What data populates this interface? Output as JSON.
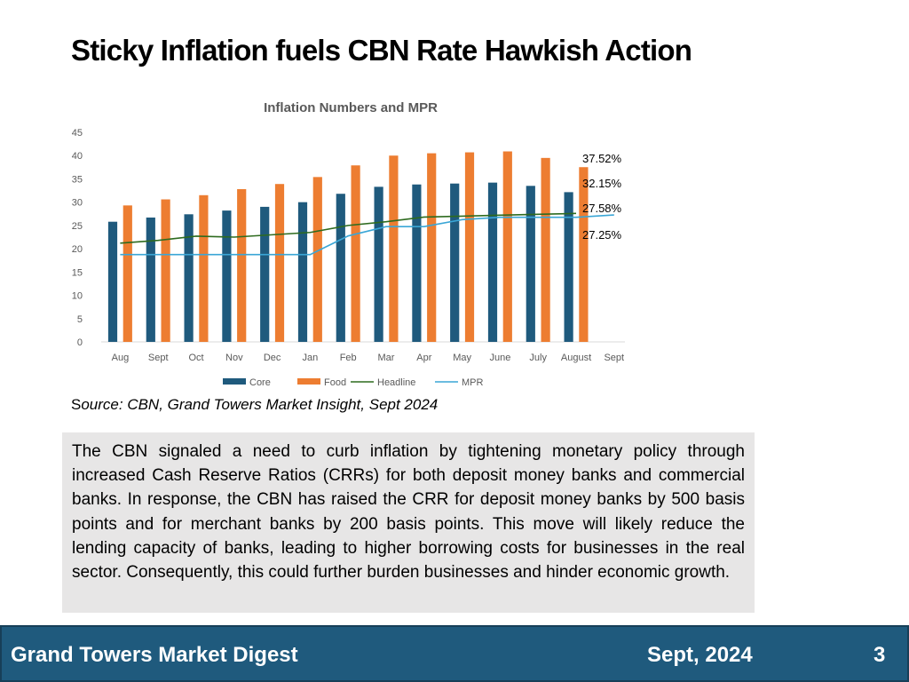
{
  "slide": {
    "title": "Sticky Inflation fuels CBN Rate Hawkish Action",
    "source_first": "S",
    "source_rest": "ource: CBN, Grand Towers Market Insight, Sept 2024",
    "body": "The CBN signaled a need to curb inflation by tightening monetary policy through increased Cash Reserve Ratios (CRRs) for both deposit money banks and commercial banks. In response, the CBN has raised the CRR for deposit money banks by 500 basis points and for merchant banks by 200 basis points. This move will likely reduce the lending capacity of banks, leading to higher borrowing costs for businesses in the real sector. Consequently, this could further burden businesses and hinder economic growth."
  },
  "footer": {
    "left": "Grand Towers Market Digest",
    "date": "Sept, 2024",
    "page": "3"
  },
  "chart_data": {
    "type": "bar",
    "title": "Inflation Numbers and MPR",
    "categories": [
      "Aug",
      "Sept",
      "Oct",
      "Nov",
      "Dec",
      "Jan",
      "Feb",
      "Mar",
      "Apr",
      "May",
      "June",
      "July",
      "August",
      "Sept"
    ],
    "ylim": [
      0,
      45
    ],
    "yticks": [
      0,
      5,
      10,
      15,
      20,
      25,
      30,
      35,
      40,
      45
    ],
    "legend_position": "bottom",
    "grid": false,
    "series": [
      {
        "name": "Core",
        "type": "bar",
        "color": "#1f5a7d",
        "values": [
          25.8,
          26.7,
          27.4,
          28.2,
          29.0,
          30.0,
          31.8,
          33.3,
          33.8,
          34.0,
          34.2,
          33.5,
          32.15,
          null
        ]
      },
      {
        "name": "Food",
        "type": "bar",
        "color": "#ed7d31",
        "values": [
          29.3,
          30.6,
          31.5,
          32.8,
          33.9,
          35.4,
          37.9,
          40.0,
          40.5,
          40.7,
          40.9,
          39.5,
          37.52,
          null
        ]
      },
      {
        "name": "Headline",
        "type": "line",
        "color": "#2e6b1f",
        "values": [
          21.2,
          21.8,
          22.7,
          22.5,
          23.0,
          23.5,
          25.0,
          25.8,
          26.8,
          27.0,
          27.2,
          27.4,
          27.58,
          null
        ]
      },
      {
        "name": "MPR",
        "type": "line",
        "color": "#3aa6d6",
        "values": [
          18.75,
          18.75,
          18.75,
          18.75,
          18.75,
          18.75,
          22.75,
          24.75,
          24.75,
          26.25,
          26.75,
          26.75,
          26.75,
          27.25
        ]
      }
    ],
    "annotations": [
      "37.52%",
      "32.15%",
      "27.58%",
      "27.25%"
    ]
  }
}
